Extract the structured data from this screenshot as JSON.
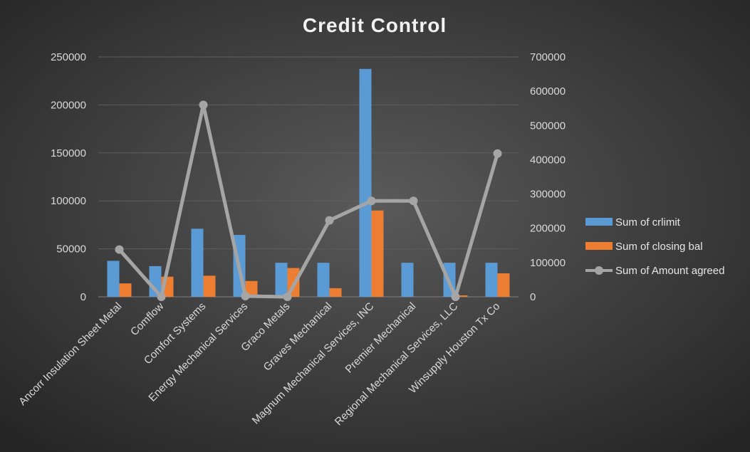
{
  "chart_data": {
    "type": "bar",
    "title": "Credit Control",
    "categories": [
      "Ancorr Insulation Sheet Metal",
      "Comflow",
      "Comfort Systems",
      "Energy Mechanical Services",
      "Graco Metals",
      "Graves Mechanical",
      "Magnum Mechanical Services, INC",
      "Premier Mechanical",
      "Regional Mechanical Services, LLC",
      "Winsupply Houston Tx Co"
    ],
    "series": [
      {
        "name": "Sum of crlimit",
        "type": "bar",
        "axis": "left",
        "color": "#5b9bd5",
        "values": [
          37500,
          32000,
          71000,
          64500,
          35500,
          35500,
          237500,
          35500,
          35500,
          35500
        ]
      },
      {
        "name": "Sum of closing bal",
        "type": "bar",
        "axis": "left",
        "color": "#ed7d31",
        "values": [
          14000,
          21000,
          22000,
          16500,
          30000,
          9000,
          90000,
          0,
          1500,
          24500
        ]
      },
      {
        "name": "Sum of Amount agreed",
        "type": "line",
        "axis": "right",
        "color": "#a5a5a5",
        "values": [
          138000,
          0,
          560000,
          2000,
          0,
          223000,
          280000,
          280000,
          0,
          418000
        ]
      }
    ],
    "y_left": {
      "min": 0,
      "max": 250000,
      "ticks": [
        "0",
        "50000",
        "100000",
        "150000",
        "200000",
        "250000"
      ]
    },
    "y_right": {
      "min": 0,
      "max": 700000,
      "ticks": [
        "0",
        "100000",
        "200000",
        "300000",
        "400000",
        "500000",
        "600000",
        "700000"
      ]
    },
    "grid": true,
    "legend_position": "right"
  }
}
